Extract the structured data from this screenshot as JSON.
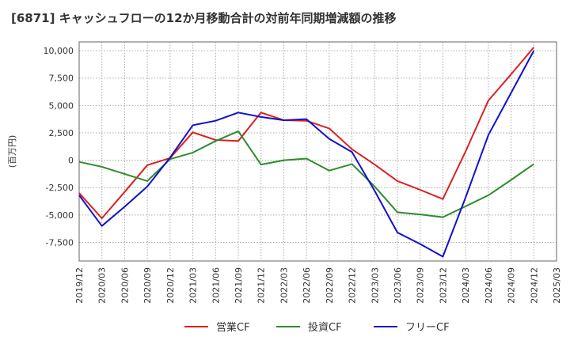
{
  "title": "[6871]  キャッシュフローの12か月移動合計の対前年同期増減額の推移",
  "chart_data": {
    "type": "line",
    "title": "[6871]  キャッシュフローの12か月移動合計の対前年同期増減額の推移",
    "ylabel": "(百万円)",
    "xlabel": "",
    "ylim": [
      -9200,
      10800
    ],
    "yticks": [
      -7500,
      -5000,
      -2500,
      0,
      2500,
      5000,
      7500,
      10000
    ],
    "ytick_labels": [
      "-7,500",
      "-5,000",
      "-2,500",
      "0",
      "2,500",
      "5,000",
      "7,500",
      "10,000"
    ],
    "x_labels": [
      "2019/12",
      "2020/03",
      "2020/06",
      "2020/09",
      "2020/12",
      "2021/03",
      "2021/06",
      "2021/09",
      "2021/12",
      "2022/03",
      "2022/06",
      "2022/09",
      "2022/12",
      "2023/03",
      "2023/06",
      "2023/09",
      "2023/12",
      "2024/03",
      "2024/06",
      "2024/09",
      "2024/12",
      "2025/03"
    ],
    "grid": true,
    "legend_position": "bottom",
    "series": [
      {
        "name": "営業CF",
        "color": "#dd1f1f",
        "values": [
          -3000,
          -5300,
          -2900,
          -450,
          200,
          2550,
          1850,
          1750,
          4350,
          3650,
          3600,
          2900,
          1000,
          -400,
          -1900,
          -2700,
          -3550,
          800,
          5450,
          7850,
          10300,
          null
        ]
      },
      {
        "name": "投資CF",
        "color": "#2e8b2e",
        "values": [
          -150,
          -600,
          -1250,
          -1900,
          100,
          700,
          1750,
          2650,
          -400,
          0,
          150,
          -950,
          -350,
          -2400,
          -4750,
          -4950,
          -5200,
          -4200,
          -3200,
          -1800,
          -350,
          null
        ]
      },
      {
        "name": "フリーCF",
        "color": "#1111cc",
        "values": [
          -3200,
          -6000,
          -4250,
          -2400,
          250,
          3200,
          3600,
          4350,
          3950,
          3650,
          3750,
          1950,
          750,
          -2800,
          -6600,
          -7650,
          -8800,
          -3400,
          2300,
          6150,
          10000,
          null
        ]
      }
    ]
  }
}
